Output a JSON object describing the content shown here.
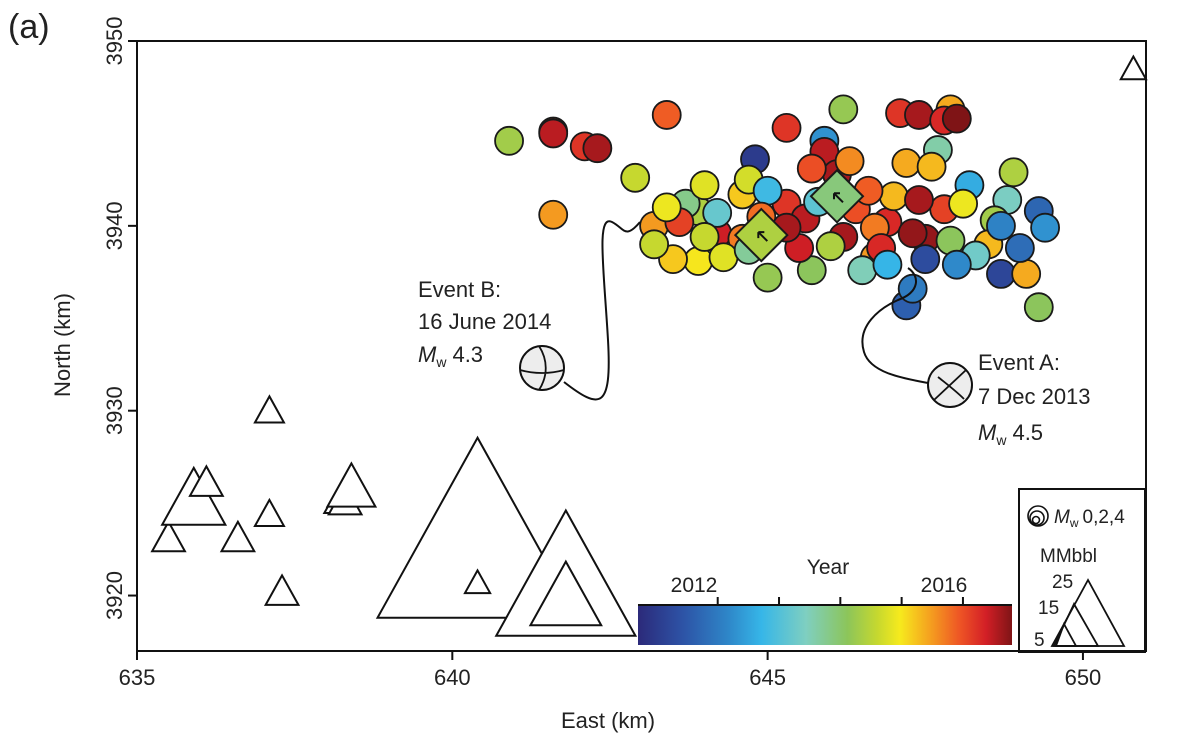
{
  "chart_data": {
    "type": "scatter",
    "panel_label": "(a)",
    "xlabel": "East (km)",
    "ylabel": "North (km)",
    "xlim": [
      635,
      651
    ],
    "ylim": [
      3917,
      3950
    ],
    "xticks": [
      "635",
      "640",
      "645",
      "650"
    ],
    "yticks": [
      "3920",
      "3930",
      "3940",
      "3950"
    ],
    "colorbar": {
      "title": "Year",
      "range": [
        2010.7,
        2016.8
      ],
      "tick_labels": [
        "2012",
        "2016"
      ],
      "tick_years": [
        2012,
        2016
      ],
      "minor_ticks": [
        2013,
        2014,
        2015
      ]
    },
    "legend": {
      "magnitude_label": "M",
      "magnitude_sub": "w",
      "magnitude_values": "0,2,4",
      "volume_title": "MMbbl",
      "volume_values": [
        "25",
        "15",
        "5"
      ]
    },
    "annotations": [
      {
        "label": "Event A:",
        "date": "7 Dec 2013",
        "mag_symbol": "M",
        "mag_sub": "w",
        "mag_value": "4.5",
        "x": 647.8,
        "y": 3931.4
      },
      {
        "label": "Event B:",
        "date": "16 June 2014",
        "mag_symbol": "M",
        "mag_sub": "w",
        "mag_value": "4.3",
        "x": 641.3,
        "y": 3932.4
      }
    ],
    "mainshocks": [
      {
        "x": 644.9,
        "y": 3939.5,
        "year": 2014.4
      },
      {
        "x": 646.1,
        "y": 3941.6,
        "year": 2013.9
      }
    ],
    "wells": [
      {
        "x": 635.5,
        "y": 3923.0,
        "mmbbl": 3
      },
      {
        "x": 635.9,
        "y": 3925.0,
        "mmbbl": 7
      },
      {
        "x": 636.1,
        "y": 3926.0,
        "mmbbl": 3
      },
      {
        "x": 636.6,
        "y": 3923.0,
        "mmbbl": 3
      },
      {
        "x": 637.1,
        "y": 3929.9,
        "mmbbl": 2.5
      },
      {
        "x": 637.1,
        "y": 3924.3,
        "mmbbl": 2.5
      },
      {
        "x": 637.3,
        "y": 3920.1,
        "mmbbl": 3
      },
      {
        "x": 638.2,
        "y": 3925.0,
        "mmbbl": 2.5
      },
      {
        "x": 638.3,
        "y": 3925.0,
        "mmbbl": 3
      },
      {
        "x": 638.4,
        "y": 3925.7,
        "mmbbl": 5
      },
      {
        "x": 640.4,
        "y": 3922.5,
        "mmbbl": 25
      },
      {
        "x": 640.4,
        "y": 3920.6,
        "mmbbl": 2
      },
      {
        "x": 641.8,
        "y": 3920.4,
        "mmbbl": 17
      },
      {
        "x": 641.8,
        "y": 3919.7,
        "mmbbl": 8
      },
      {
        "x": 650.8,
        "y": 3948.4,
        "mmbbl": 2
      }
    ],
    "earthquakes": [
      {
        "x": 640.9,
        "y": 3944.6,
        "year": 2014.3
      },
      {
        "x": 641.6,
        "y": 3945.1,
        "year": 2016.0
      },
      {
        "x": 641.6,
        "y": 3945.0,
        "year": 2016.5
      },
      {
        "x": 642.1,
        "y": 3944.3,
        "year": 2016.2
      },
      {
        "x": 642.3,
        "y": 3944.2,
        "year": 2016.6
      },
      {
        "x": 643.4,
        "y": 3946.0,
        "year": 2015.9
      },
      {
        "x": 641.6,
        "y": 3940.6,
        "year": 2015.5
      },
      {
        "x": 642.9,
        "y": 3942.6,
        "year": 2014.6
      },
      {
        "x": 643.2,
        "y": 3940.0,
        "year": 2015.5
      },
      {
        "x": 644.2,
        "y": 3939.6,
        "year": 2016.4
      },
      {
        "x": 643.9,
        "y": 3940.8,
        "year": 2014.4
      },
      {
        "x": 644.6,
        "y": 3941.7,
        "year": 2015.2
      },
      {
        "x": 645.3,
        "y": 3941.2,
        "year": 2016.2
      },
      {
        "x": 646.2,
        "y": 3939.4,
        "year": 2016.6
      },
      {
        "x": 646.9,
        "y": 3940.2,
        "year": 2016.3
      },
      {
        "x": 647.5,
        "y": 3939.3,
        "year": 2016.7
      },
      {
        "x": 646.2,
        "y": 3946.3,
        "year": 2014.2
      },
      {
        "x": 645.3,
        "y": 3945.3,
        "year": 2016.2
      },
      {
        "x": 645.9,
        "y": 3944.6,
        "year": 2012.3
      },
      {
        "x": 645.9,
        "y": 3944.0,
        "year": 2016.5
      },
      {
        "x": 644.8,
        "y": 3943.6,
        "year": 2011.0
      },
      {
        "x": 644.7,
        "y": 3942.5,
        "year": 2014.7
      },
      {
        "x": 647.7,
        "y": 3944.1,
        "year": 2013.6
      },
      {
        "x": 647.2,
        "y": 3943.4,
        "year": 2015.4
      },
      {
        "x": 647.6,
        "y": 3943.2,
        "year": 2015.3
      },
      {
        "x": 647.1,
        "y": 3946.1,
        "year": 2016.2
      },
      {
        "x": 647.4,
        "y": 3946.0,
        "year": 2016.6
      },
      {
        "x": 647.9,
        "y": 3946.3,
        "year": 2015.4
      },
      {
        "x": 647.8,
        "y": 3945.7,
        "year": 2016.3
      },
      {
        "x": 648.0,
        "y": 3945.8,
        "year": 2016.8
      },
      {
        "x": 648.9,
        "y": 3942.9,
        "year": 2014.4
      },
      {
        "x": 649.3,
        "y": 3940.8,
        "year": 2011.7
      },
      {
        "x": 649.4,
        "y": 3939.9,
        "year": 2012.3
      },
      {
        "x": 648.8,
        "y": 3941.4,
        "year": 2013.4
      },
      {
        "x": 648.2,
        "y": 3942.2,
        "year": 2012.6
      },
      {
        "x": 648.6,
        "y": 3940.3,
        "year": 2014.3
      },
      {
        "x": 648.5,
        "y": 3939.0,
        "year": 2015.3
      },
      {
        "x": 648.7,
        "y": 3937.4,
        "year": 2011.2
      },
      {
        "x": 649.1,
        "y": 3937.4,
        "year": 2015.4
      },
      {
        "x": 649.3,
        "y": 3935.6,
        "year": 2014.1
      },
      {
        "x": 647.2,
        "y": 3935.7,
        "year": 2011.6
      },
      {
        "x": 647.3,
        "y": 3936.6,
        "year": 2012.0
      },
      {
        "x": 647.5,
        "y": 3938.2,
        "year": 2011.3
      },
      {
        "x": 646.7,
        "y": 3938.3,
        "year": 2015.5
      },
      {
        "x": 646.5,
        "y": 3937.6,
        "year": 2013.5
      },
      {
        "x": 645.7,
        "y": 3937.6,
        "year": 2014.1
      },
      {
        "x": 645.0,
        "y": 3937.2,
        "year": 2014.2
      },
      {
        "x": 643.9,
        "y": 3938.1,
        "year": 2015.0
      },
      {
        "x": 643.5,
        "y": 3938.2,
        "year": 2015.2
      },
      {
        "x": 643.2,
        "y": 3939.0,
        "year": 2014.6
      },
      {
        "x": 645.5,
        "y": 3938.8,
        "year": 2016.4
      },
      {
        "x": 645.0,
        "y": 3941.9,
        "year": 2012.8
      },
      {
        "x": 646.1,
        "y": 3942.8,
        "year": 2016.6
      },
      {
        "x": 644.2,
        "y": 3940.7,
        "year": 2013.2
      },
      {
        "x": 643.7,
        "y": 3941.2,
        "year": 2013.8
      },
      {
        "x": 644.9,
        "y": 3940.5,
        "year": 2015.8
      },
      {
        "x": 645.6,
        "y": 3940.4,
        "year": 2016.5
      },
      {
        "x": 646.4,
        "y": 3940.9,
        "year": 2016.0
      },
      {
        "x": 646.7,
        "y": 3939.9,
        "year": 2015.7
      },
      {
        "x": 647.0,
        "y": 3941.6,
        "year": 2015.3
      },
      {
        "x": 647.8,
        "y": 3940.9,
        "year": 2016.1
      },
      {
        "x": 648.1,
        "y": 3941.2,
        "year": 2014.9
      },
      {
        "x": 647.9,
        "y": 3939.2,
        "year": 2014.1
      },
      {
        "x": 648.3,
        "y": 3938.4,
        "year": 2013.3
      },
      {
        "x": 645.3,
        "y": 3939.9,
        "year": 2016.6
      },
      {
        "x": 644.6,
        "y": 3939.3,
        "year": 2015.7
      },
      {
        "x": 644.0,
        "y": 3939.4,
        "year": 2014.6
      },
      {
        "x": 643.6,
        "y": 3940.2,
        "year": 2016.1
      },
      {
        "x": 646.0,
        "y": 3938.9,
        "year": 2014.4
      },
      {
        "x": 646.8,
        "y": 3938.8,
        "year": 2016.3
      },
      {
        "x": 647.3,
        "y": 3939.6,
        "year": 2016.7
      },
      {
        "x": 644.3,
        "y": 3938.3,
        "year": 2014.8
      },
      {
        "x": 645.8,
        "y": 3941.3,
        "year": 2013.1
      },
      {
        "x": 646.6,
        "y": 3941.9,
        "year": 2015.9
      },
      {
        "x": 643.4,
        "y": 3941.0,
        "year": 2014.9
      },
      {
        "x": 648.7,
        "y": 3940.0,
        "year": 2012.1
      },
      {
        "x": 649.0,
        "y": 3938.8,
        "year": 2011.8
      },
      {
        "x": 648.0,
        "y": 3937.9,
        "year": 2012.2
      },
      {
        "x": 646.3,
        "y": 3943.5,
        "year": 2015.6
      },
      {
        "x": 644.0,
        "y": 3942.2,
        "year": 2014.8
      },
      {
        "x": 645.7,
        "y": 3943.1,
        "year": 2016.0
      },
      {
        "x": 646.9,
        "y": 3937.9,
        "year": 2012.7
      },
      {
        "x": 647.4,
        "y": 3941.4,
        "year": 2016.6
      },
      {
        "x": 644.7,
        "y": 3938.7,
        "year": 2013.7
      }
    ]
  }
}
